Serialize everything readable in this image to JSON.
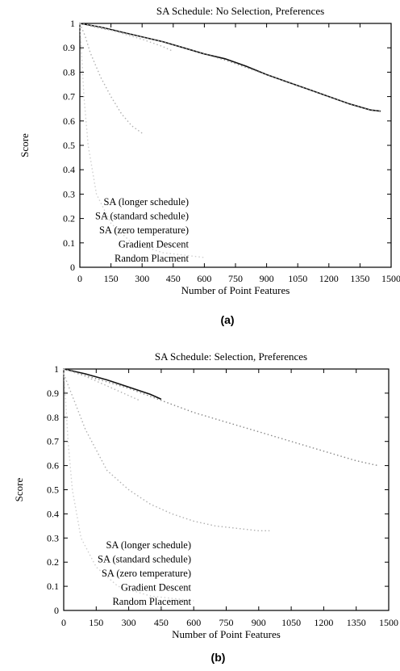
{
  "chart_data": [
    {
      "type": "line",
      "title": "SA Schedule:  No Selection, Preferences",
      "xlabel": "Number of Point Features",
      "ylabel": "Score",
      "panel_label": "(a)",
      "xlim": [
        0,
        1500
      ],
      "ylim": [
        0,
        1
      ],
      "xticks": [
        "0",
        "150",
        "300",
        "450",
        "600",
        "750",
        "900",
        "1050",
        "1200",
        "1350",
        "1500"
      ],
      "yticks": [
        "0",
        "0.1",
        "0.2",
        "0.3",
        "0.4",
        "0.5",
        "0.6",
        "0.7",
        "0.8",
        "0.9",
        "1"
      ],
      "legend_position": "bottom-left",
      "series": [
        {
          "name": "SA (longer schedule)",
          "color": "#111111",
          "style": "solid",
          "x": [
            0,
            100,
            200,
            300,
            400,
            500,
            600,
            700,
            800,
            900,
            1000,
            1100,
            1200,
            1300,
            1400,
            1450
          ],
          "y": [
            1.0,
            0.985,
            0.965,
            0.945,
            0.925,
            0.9,
            0.875,
            0.855,
            0.825,
            0.79,
            0.76,
            0.73,
            0.7,
            0.67,
            0.645,
            0.64
          ]
        },
        {
          "name": "SA (standard schedule)",
          "color": "#8a8a8a",
          "style": "dotted",
          "x": [
            0,
            100,
            200,
            300,
            400,
            500,
            600,
            700,
            800,
            900,
            1000,
            1100,
            1200,
            1300,
            1400,
            1450
          ],
          "y": [
            1.0,
            0.98,
            0.965,
            0.945,
            0.925,
            0.9,
            0.875,
            0.85,
            0.82,
            0.79,
            0.76,
            0.73,
            0.7,
            0.67,
            0.645,
            0.64
          ]
        },
        {
          "name": "SA (zero temperature)",
          "color": "#b5b5b5",
          "style": "dotted",
          "x": [
            0,
            100,
            200,
            300,
            400,
            450
          ],
          "y": [
            1.0,
            0.985,
            0.96,
            0.935,
            0.905,
            0.885
          ]
        },
        {
          "name": "Gradient Descent",
          "color": "#b0b0b0",
          "style": "dotted",
          "x": [
            0,
            25,
            50,
            100,
            150,
            200,
            250,
            300
          ],
          "y": [
            1.0,
            0.95,
            0.88,
            0.78,
            0.7,
            0.63,
            0.58,
            0.55
          ]
        },
        {
          "name": "Random Placment",
          "color": "#cfcfcf",
          "style": "dotted",
          "x": [
            0,
            10,
            20,
            40,
            80,
            150,
            250,
            400,
            600
          ],
          "y": [
            1.0,
            0.85,
            0.7,
            0.5,
            0.3,
            0.18,
            0.1,
            0.06,
            0.04
          ]
        }
      ]
    },
    {
      "type": "line",
      "title": "SA Schedule:  Selection, Preferences",
      "xlabel": "Number of Point Features",
      "ylabel": "Score",
      "panel_label": "(b)",
      "xlim": [
        0,
        1500
      ],
      "ylim": [
        0,
        1
      ],
      "xticks": [
        "0",
        "150",
        "300",
        "450",
        "600",
        "750",
        "900",
        "1050",
        "1200",
        "1350",
        "1500"
      ],
      "yticks": [
        "0",
        "0.1",
        "0.2",
        "0.3",
        "0.4",
        "0.5",
        "0.6",
        "0.7",
        "0.8",
        "0.9",
        "1"
      ],
      "legend_position": "bottom-left",
      "series": [
        {
          "name": "SA (longer schedule)",
          "color": "#111111",
          "style": "solid",
          "x": [
            0,
            100,
            200,
            300,
            400,
            450
          ],
          "y": [
            1.0,
            0.98,
            0.955,
            0.925,
            0.895,
            0.875
          ]
        },
        {
          "name": "SA (standard schedule)",
          "color": "#8a8a8a",
          "style": "dotted",
          "x": [
            0,
            150,
            300,
            450,
            600,
            750,
            900,
            1050,
            1200,
            1350,
            1450
          ],
          "y": [
            1.0,
            0.96,
            0.92,
            0.87,
            0.82,
            0.78,
            0.74,
            0.7,
            0.66,
            0.62,
            0.6
          ]
        },
        {
          "name": "SA (zero temperature)",
          "color": "#b5b5b5",
          "style": "dotted",
          "x": [
            0,
            100,
            200,
            300,
            350
          ],
          "y": [
            1.0,
            0.97,
            0.93,
            0.89,
            0.87
          ]
        },
        {
          "name": "Gradient Descent",
          "color": "#b0b0b0",
          "style": "dotted",
          "x": [
            0,
            100,
            200,
            300,
            400,
            500,
            600,
            700,
            800,
            900,
            950
          ],
          "y": [
            0.98,
            0.75,
            0.58,
            0.5,
            0.44,
            0.4,
            0.37,
            0.35,
            0.34,
            0.33,
            0.33
          ]
        },
        {
          "name": "Random Placement",
          "color": "#cfcfcf",
          "style": "dotted",
          "x": [
            0,
            10,
            20,
            40,
            80,
            150,
            250,
            400,
            600
          ],
          "y": [
            1.0,
            0.85,
            0.7,
            0.5,
            0.3,
            0.18,
            0.1,
            0.06,
            0.04
          ]
        }
      ]
    }
  ]
}
